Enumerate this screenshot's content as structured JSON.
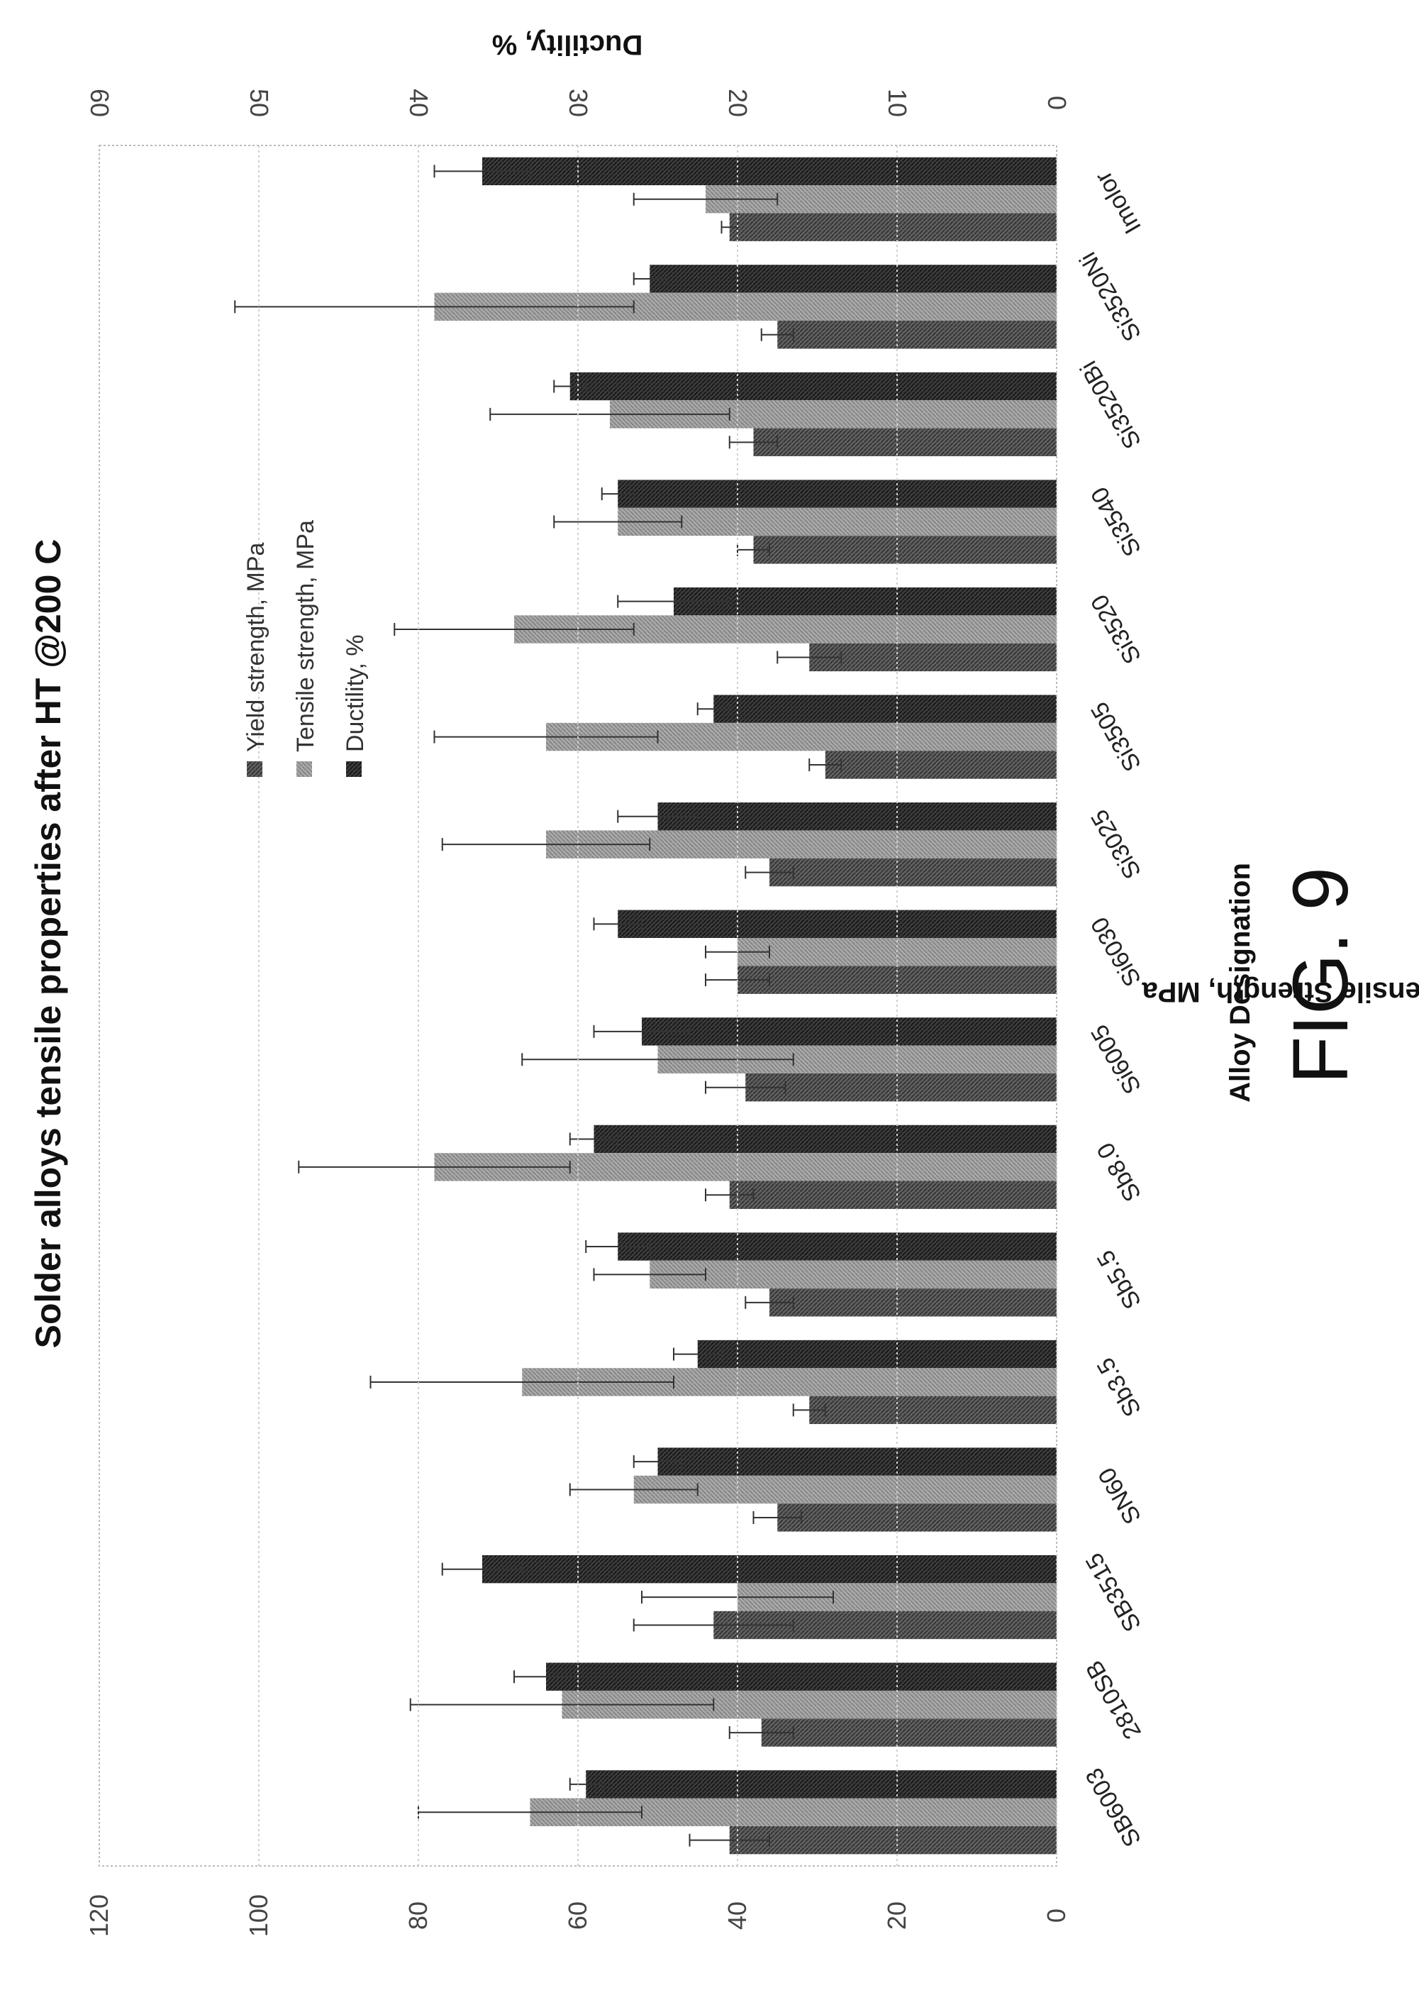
{
  "figure_label": "FIG. 9",
  "chart_data": {
    "type": "bar",
    "title": "Solder alloys tensile properties after HT @200 C",
    "xlabel": "Alloy Designation",
    "ylabel": "Yield/Ultimate Tensile Strength, MPa",
    "y2label": "Ductility, %",
    "ylim": [
      0,
      120
    ],
    "y2lim": [
      0,
      60
    ],
    "yticks": [
      "0",
      "20",
      "40",
      "60",
      "80",
      "100",
      "120"
    ],
    "y2ticks": [
      "0",
      "10",
      "20",
      "30",
      "40",
      "50",
      "60"
    ],
    "grid": true,
    "legend_position": "top-right",
    "categories": [
      "SB6003",
      "2810SB",
      "SB3515",
      "SN60",
      "Sb3.5",
      "Sb5.5",
      "Sb8.0",
      "Si6005",
      "Si6030",
      "Si3025",
      "Si3505",
      "Si3520",
      "Si3540",
      "Si3520Bi",
      "Si3520Ni",
      "Imolor"
    ],
    "series": [
      {
        "name": "Yield strength, MPa",
        "axis": "left",
        "color": "#555555",
        "values": [
          41,
          37,
          43,
          35,
          31,
          36,
          41,
          39,
          40,
          36,
          29,
          31,
          38,
          38,
          35,
          41
        ],
        "errors": [
          5,
          4,
          10,
          3,
          2,
          3,
          3,
          5,
          4,
          3,
          2,
          4,
          2,
          3,
          2,
          1
        ]
      },
      {
        "name": "Tensile strength, MPa",
        "axis": "left",
        "color": "#9a9a9a",
        "values": [
          66,
          62,
          40,
          53,
          67,
          51,
          78,
          50,
          40,
          64,
          64,
          68,
          55,
          56,
          78,
          44
        ],
        "errors": [
          14,
          19,
          12,
          8,
          19,
          7,
          17,
          17,
          4,
          13,
          14,
          15,
          8,
          15,
          25,
          9
        ]
      },
      {
        "name": "Ductility, %",
        "axis": "right",
        "color": "#383838",
        "values": [
          29.5,
          32,
          36,
          25,
          22.5,
          27.5,
          29,
          26,
          27.5,
          25,
          21.5,
          24,
          27.5,
          30.5,
          25.5,
          36
        ],
        "errors": [
          1,
          2,
          2.5,
          1.5,
          1.5,
          2,
          1.5,
          3,
          1.5,
          2.5,
          1,
          3.5,
          1,
          1,
          1,
          3
        ]
      }
    ]
  }
}
